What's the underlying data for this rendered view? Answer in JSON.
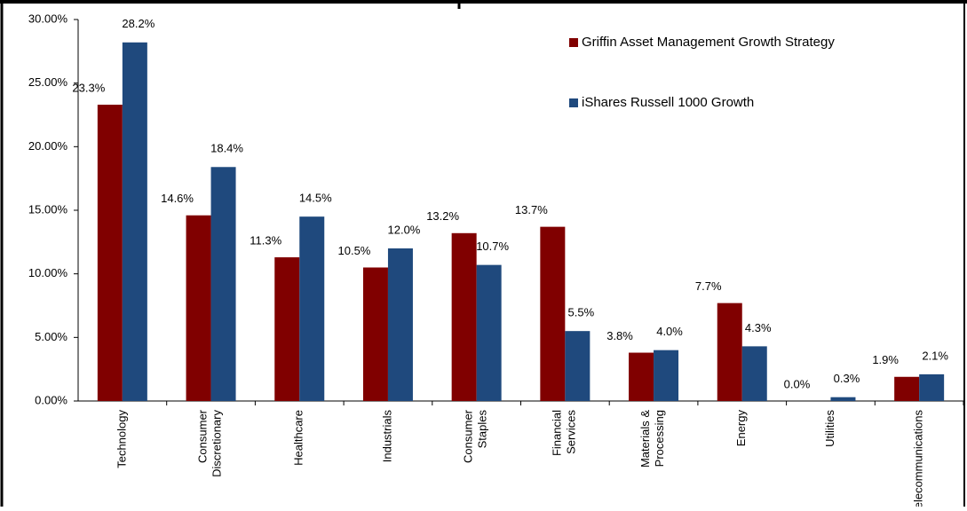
{
  "chart_data": {
    "type": "bar",
    "categories": [
      "Technology",
      "Consumer Discretionary",
      "Healthcare",
      "Industrials",
      "Consumer Staples",
      "Financial Services",
      "Materials & Processing",
      "Energy",
      "Utilities",
      "Telecommunications"
    ],
    "series": [
      {
        "name": "Griffin Asset Management Growth Strategy",
        "color": "#800000",
        "values": [
          23.3,
          14.6,
          11.3,
          10.5,
          13.2,
          13.7,
          3.8,
          7.7,
          0.0,
          1.9
        ],
        "value_labels": [
          "23.3%",
          "14.6%",
          "11.3%",
          "10.5%",
          "13.2%",
          "13.7%",
          "3.8%",
          "7.7%",
          "0.0%",
          "1.9%"
        ]
      },
      {
        "name": "iShares Russell 1000 Growth",
        "color": "#1f497d",
        "values": [
          28.2,
          18.4,
          14.5,
          12.0,
          10.7,
          5.5,
          4.0,
          4.3,
          0.3,
          2.1
        ],
        "value_labels": [
          "28.2%",
          "18.4%",
          "14.5%",
          "12.0%",
          "10.7%",
          "5.5%",
          "4.0%",
          "4.3%",
          "0.3%",
          "2.1%"
        ]
      }
    ],
    "ylim": [
      0,
      30
    ],
    "yticks": [
      {
        "value": 0,
        "label": "0.00%"
      },
      {
        "value": 5,
        "label": "5.00%"
      },
      {
        "value": 10,
        "label": "10.00%"
      },
      {
        "value": 15,
        "label": "15.00%"
      },
      {
        "value": 20,
        "label": "20.00%"
      },
      {
        "value": 25,
        "label": "25.00%"
      },
      {
        "value": 30,
        "label": "30.00%"
      }
    ],
    "legend": "top-right"
  }
}
